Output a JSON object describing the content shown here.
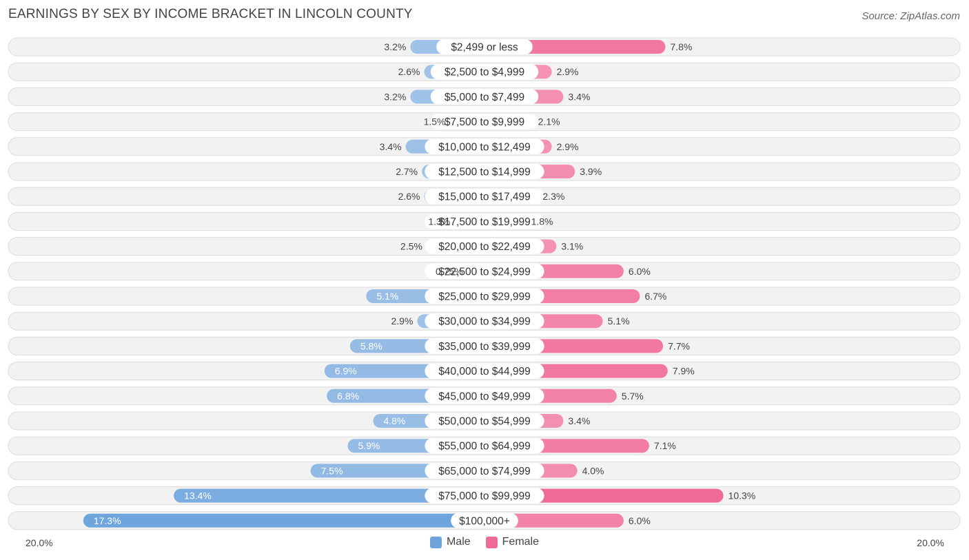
{
  "header": {
    "title": "EARNINGS BY SEX BY INCOME BRACKET IN LINCOLN COUNTY",
    "source": "Source: ZipAtlas.com"
  },
  "colors": {
    "male": "#6fa5dd",
    "male_light": "#a9c8ea",
    "female": "#f06a96",
    "female_light": "#f5a3bd",
    "row_bg": "#f2f2f2",
    "row_border": "#dcdcdc"
  },
  "chart_data": {
    "type": "bar",
    "title": "EARNINGS BY SEX BY INCOME BRACKET IN LINCOLN COUNTY",
    "orientation": "diverging-horizontal",
    "categories": [
      "$2,499 or less",
      "$2,500 to $4,999",
      "$5,000 to $7,499",
      "$7,500 to $9,999",
      "$10,000 to $12,499",
      "$12,500 to $14,999",
      "$15,000 to $17,499",
      "$17,500 to $19,999",
      "$20,000 to $22,499",
      "$22,500 to $24,999",
      "$25,000 to $29,999",
      "$30,000 to $34,999",
      "$35,000 to $39,999",
      "$40,000 to $44,999",
      "$45,000 to $49,999",
      "$50,000 to $54,999",
      "$55,000 to $64,999",
      "$65,000 to $74,999",
      "$75,000 to $99,999",
      "$100,000+"
    ],
    "series": [
      {
        "name": "Male",
        "values": [
          3.2,
          2.6,
          3.2,
          1.5,
          3.4,
          2.7,
          2.6,
          1.3,
          2.5,
          0.75,
          5.1,
          2.9,
          5.8,
          6.9,
          6.8,
          4.8,
          5.9,
          7.5,
          13.4,
          17.3
        ],
        "labels": [
          "3.2%",
          "2.6%",
          "3.2%",
          "1.5%",
          "3.4%",
          "2.7%",
          "2.6%",
          "1.3%",
          "2.5%",
          "0.75%",
          "5.1%",
          "2.9%",
          "5.8%",
          "6.9%",
          "6.8%",
          "4.8%",
          "5.9%",
          "7.5%",
          "13.4%",
          "17.3%"
        ]
      },
      {
        "name": "Female",
        "values": [
          7.8,
          2.9,
          3.4,
          2.1,
          2.9,
          3.9,
          2.3,
          1.8,
          3.1,
          6.0,
          6.7,
          5.1,
          7.7,
          7.9,
          5.7,
          3.4,
          7.1,
          4.0,
          10.3,
          6.0
        ],
        "labels": [
          "7.8%",
          "2.9%",
          "3.4%",
          "2.1%",
          "2.9%",
          "3.9%",
          "2.3%",
          "1.8%",
          "3.1%",
          "6.0%",
          "6.7%",
          "5.1%",
          "7.7%",
          "7.9%",
          "5.7%",
          "3.4%",
          "7.1%",
          "4.0%",
          "10.3%",
          "6.0%"
        ]
      }
    ],
    "xlim": [
      -20,
      20
    ],
    "axis_labels": {
      "left": "20.0%",
      "right": "20.0%"
    },
    "legend": {
      "position": "bottom-center",
      "entries": [
        "Male",
        "Female"
      ]
    }
  }
}
